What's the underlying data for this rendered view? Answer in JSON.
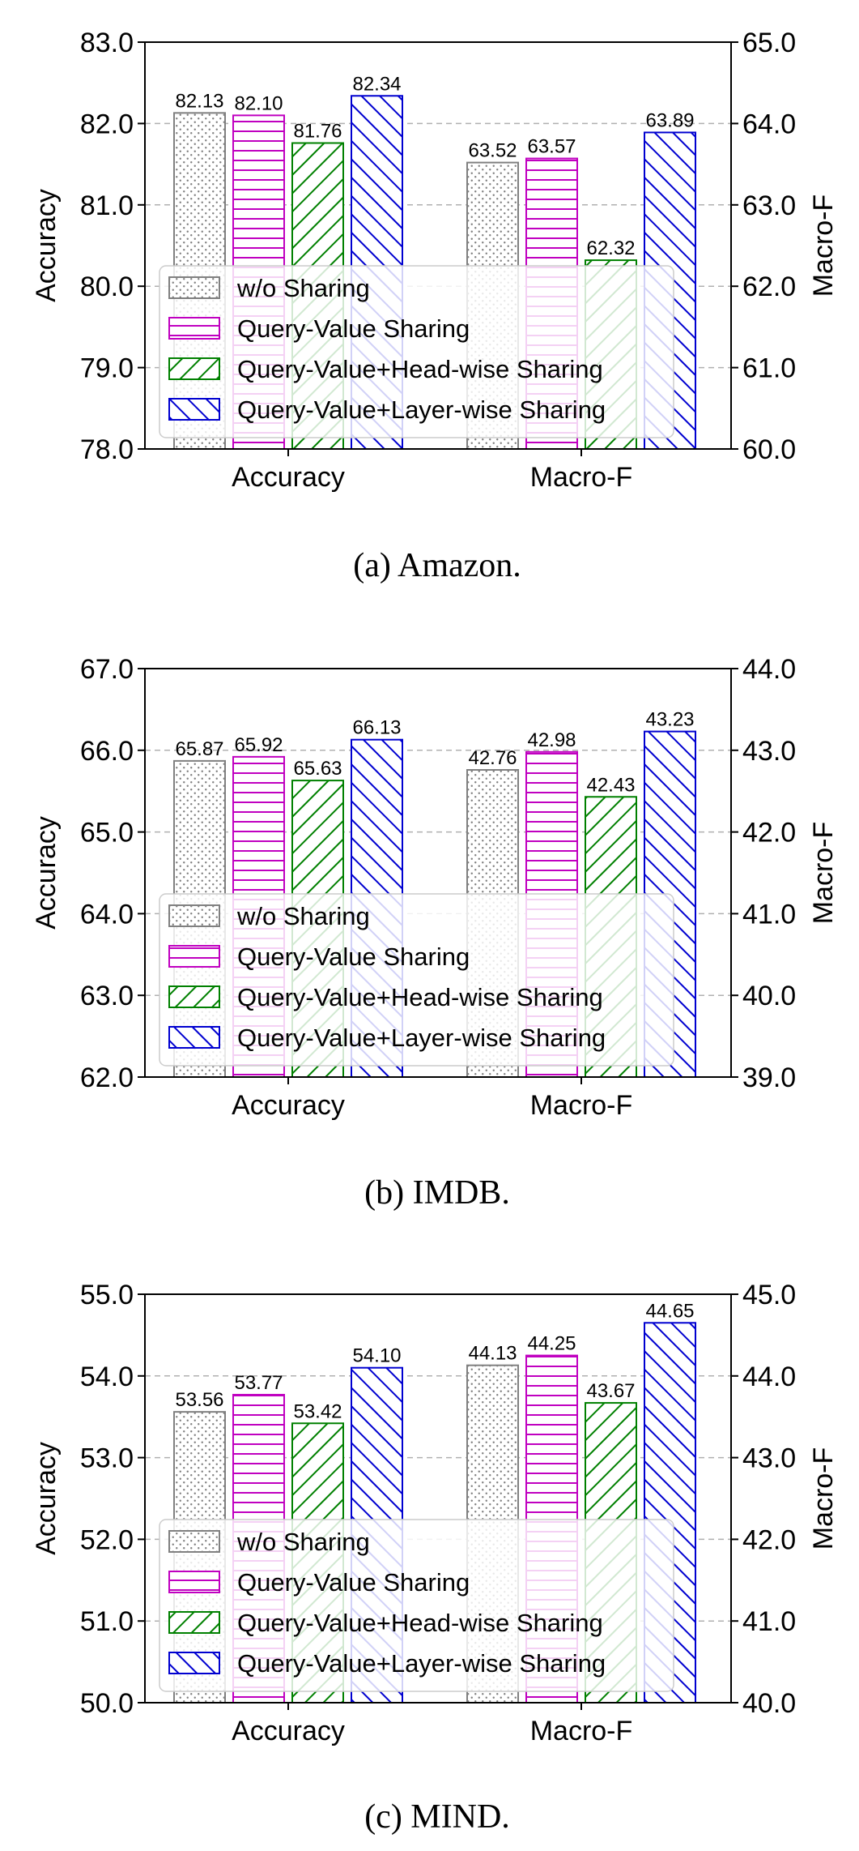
{
  "series_names": [
    "w/o Sharing",
    "Query-Value Sharing",
    "Query-Value+Head-wise Sharing",
    "Query-Value+Layer-wise Sharing"
  ],
  "series_colors": [
    "#808080",
    "#c000c0",
    "#008000",
    "#0000d0"
  ],
  "chart_data": [
    {
      "type": "bar",
      "caption": "(a)  Amazon.",
      "categories": [
        "Accuracy",
        "Macro-F"
      ],
      "ylabel_left": "Accuracy",
      "ylabel_right": "Macro-F",
      "ylim_left": [
        78.0,
        83.0
      ],
      "ylim_right": [
        60.0,
        65.0
      ],
      "yticks_left": [
        "78.0",
        "79.0",
        "80.0",
        "81.0",
        "82.0",
        "83.0"
      ],
      "yticks_right": [
        "60.0",
        "61.0",
        "62.0",
        "63.0",
        "64.0",
        "65.0"
      ],
      "grid": true,
      "legend": "lower-left",
      "series": [
        {
          "name": "w/o Sharing",
          "values": [
            82.13,
            63.52
          ],
          "labels": [
            "82.13",
            "63.52"
          ]
        },
        {
          "name": "Query-Value Sharing",
          "values": [
            82.1,
            63.57
          ],
          "labels": [
            "82.10",
            "63.57"
          ]
        },
        {
          "name": "Query-Value+Head-wise Sharing",
          "values": [
            81.76,
            62.32
          ],
          "labels": [
            "81.76",
            "62.32"
          ]
        },
        {
          "name": "Query-Value+Layer-wise Sharing",
          "values": [
            82.34,
            63.89
          ],
          "labels": [
            "82.34",
            "63.89"
          ]
        }
      ]
    },
    {
      "type": "bar",
      "caption": "(b)  IMDB.",
      "categories": [
        "Accuracy",
        "Macro-F"
      ],
      "ylabel_left": "Accuracy",
      "ylabel_right": "Macro-F",
      "ylim_left": [
        62.0,
        67.0
      ],
      "ylim_right": [
        39.0,
        44.0
      ],
      "yticks_left": [
        "62.0",
        "63.0",
        "64.0",
        "65.0",
        "66.0",
        "67.0"
      ],
      "yticks_right": [
        "39.0",
        "40.0",
        "41.0",
        "42.0",
        "43.0",
        "44.0"
      ],
      "grid": true,
      "legend": "lower-left",
      "series": [
        {
          "name": "w/o Sharing",
          "values": [
            65.87,
            42.76
          ],
          "labels": [
            "65.87",
            "42.76"
          ]
        },
        {
          "name": "Query-Value Sharing",
          "values": [
            65.92,
            42.98
          ],
          "labels": [
            "65.92",
            "42.98"
          ]
        },
        {
          "name": "Query-Value+Head-wise Sharing",
          "values": [
            65.63,
            42.43
          ],
          "labels": [
            "65.63",
            "42.43"
          ]
        },
        {
          "name": "Query-Value+Layer-wise Sharing",
          "values": [
            66.13,
            43.23
          ],
          "labels": [
            "66.13",
            "43.23"
          ]
        }
      ]
    },
    {
      "type": "bar",
      "caption": "(c)  MIND.",
      "categories": [
        "Accuracy",
        "Macro-F"
      ],
      "ylabel_left": "Accuracy",
      "ylabel_right": "Macro-F",
      "ylim_left": [
        50.0,
        55.0
      ],
      "ylim_right": [
        40.0,
        45.0
      ],
      "yticks_left": [
        "50.0",
        "51.0",
        "52.0",
        "53.0",
        "54.0",
        "55.0"
      ],
      "yticks_right": [
        "40.0",
        "41.0",
        "42.0",
        "43.0",
        "44.0",
        "45.0"
      ],
      "grid": true,
      "legend": "lower-left",
      "series": [
        {
          "name": "w/o Sharing",
          "values": [
            53.56,
            44.13
          ],
          "labels": [
            "53.56",
            "44.13"
          ]
        },
        {
          "name": "Query-Value Sharing",
          "values": [
            53.77,
            44.25
          ],
          "labels": [
            "53.77",
            "44.25"
          ]
        },
        {
          "name": "Query-Value+Head-wise Sharing",
          "values": [
            53.42,
            43.67
          ],
          "labels": [
            "53.42",
            "43.67"
          ]
        },
        {
          "name": "Query-Value+Layer-wise Sharing",
          "values": [
            54.1,
            44.65
          ],
          "labels": [
            "54.10",
            "44.65"
          ]
        }
      ]
    }
  ]
}
